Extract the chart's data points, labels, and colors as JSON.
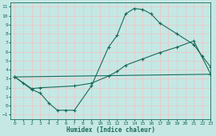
{
  "bg_color": "#c5e8e5",
  "grid_color": "#e8c8c8",
  "line_color": "#1a6b5a",
  "xlabel": "Humidex (Indice chaleur)",
  "xlim": [
    -0.5,
    23
  ],
  "ylim": [
    -1.5,
    11.5
  ],
  "xticks": [
    0,
    1,
    2,
    3,
    4,
    5,
    6,
    7,
    8,
    9,
    10,
    11,
    12,
    13,
    14,
    15,
    16,
    17,
    18,
    19,
    20,
    21,
    22,
    23
  ],
  "yticks": [
    -1,
    0,
    1,
    2,
    3,
    4,
    5,
    6,
    7,
    8,
    9,
    10,
    11
  ],
  "line1_x": [
    0,
    1,
    2,
    3,
    4,
    5,
    6,
    7,
    9,
    11,
    12,
    13,
    14,
    15,
    16,
    17,
    19,
    21,
    22,
    23
  ],
  "line1_y": [
    3.2,
    2.5,
    1.8,
    1.4,
    0.3,
    -0.5,
    -0.5,
    -0.5,
    2.2,
    6.5,
    7.8,
    10.2,
    10.8,
    10.7,
    10.2,
    9.2,
    8.0,
    6.8,
    5.5,
    4.3
  ],
  "line2_x": [
    0,
    2,
    3,
    7,
    9,
    11,
    12,
    13,
    15,
    17,
    19,
    21,
    23
  ],
  "line2_y": [
    3.2,
    1.9,
    2.0,
    2.2,
    2.5,
    3.3,
    3.8,
    4.5,
    5.2,
    5.9,
    6.5,
    7.2,
    3.5
  ],
  "line3_x": [
    0,
    23
  ],
  "line3_y": [
    3.2,
    3.5
  ]
}
